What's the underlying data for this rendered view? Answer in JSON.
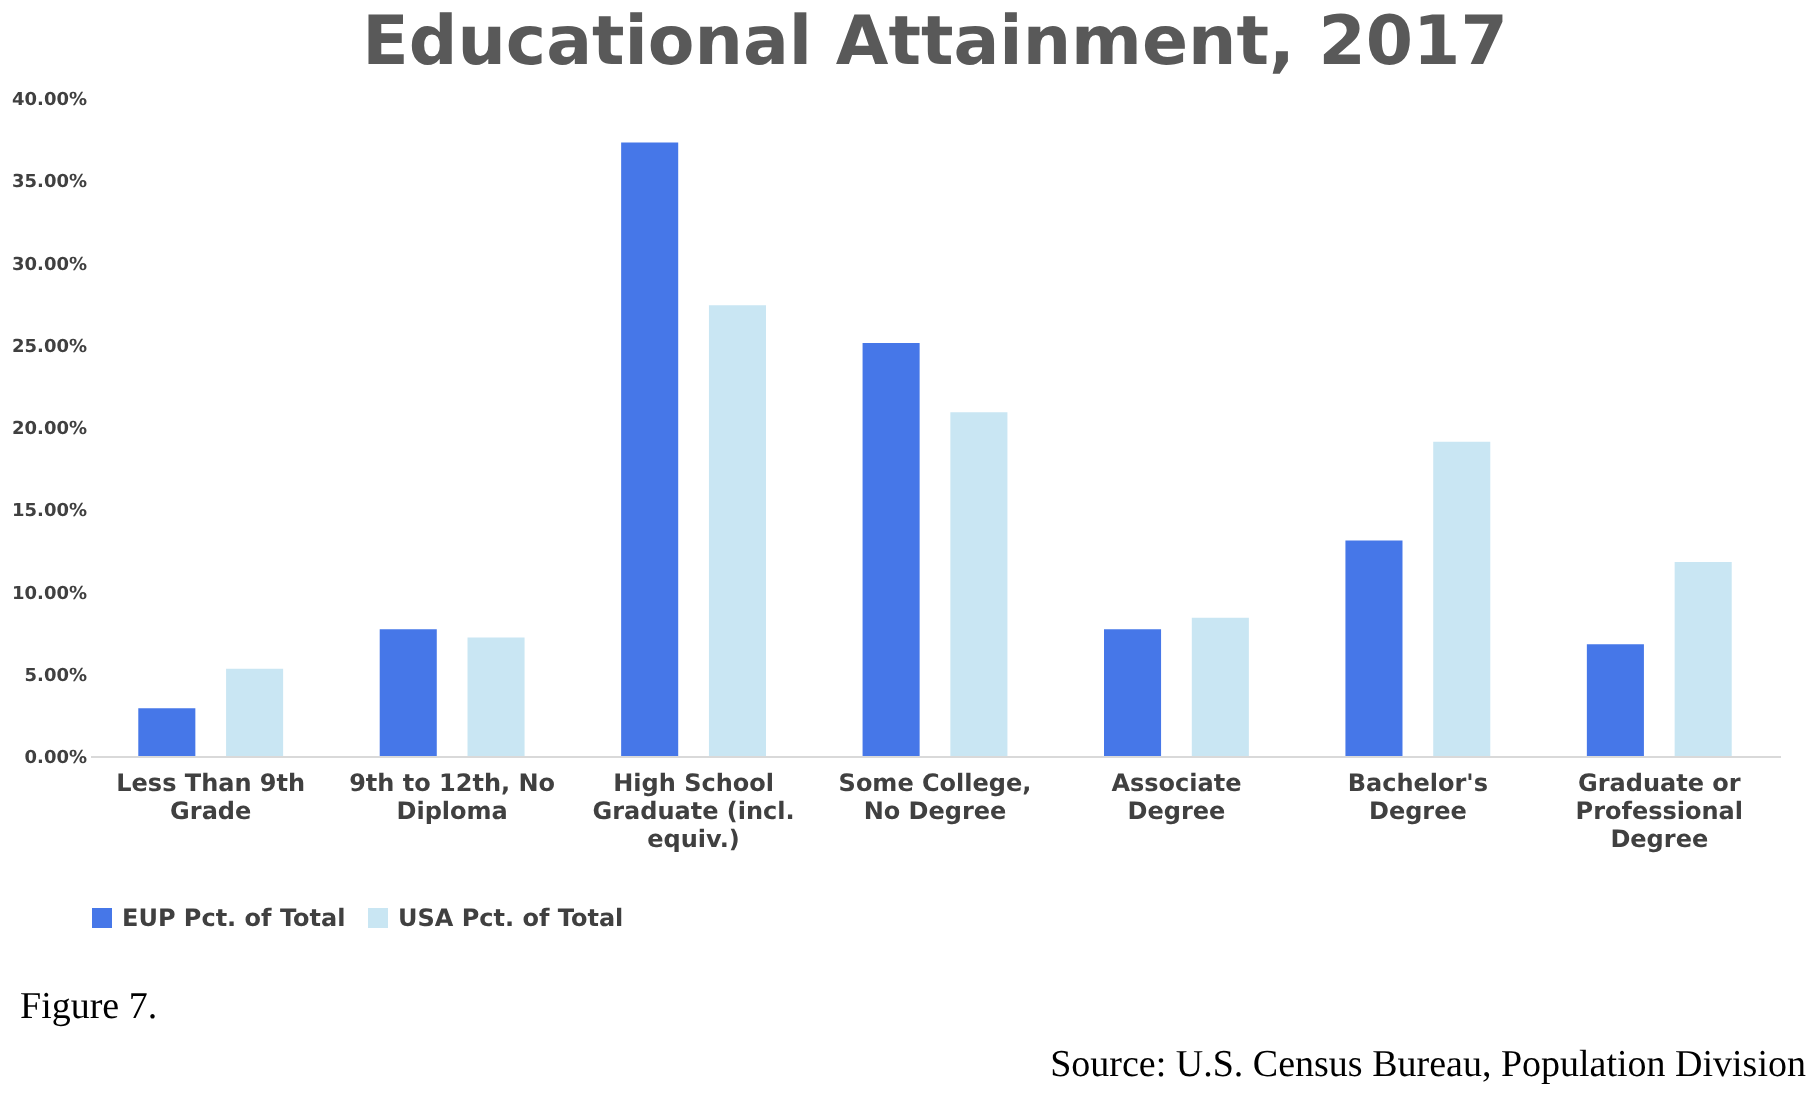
{
  "chart_data": {
    "type": "bar",
    "title": "Educational Attainment, 2017",
    "categories": [
      "Less Than 9th Grade",
      "9th to 12th, No Diploma",
      "High School Graduate (incl. equiv.)",
      "Some College, No Degree",
      "Associate Degree",
      "Bachelor's Degree",
      "Graduate or Professional Degree"
    ],
    "series": [
      {
        "name": "EUP Pct. of Total",
        "color": "#4677e8",
        "values": [
          2.9,
          7.7,
          37.3,
          25.1,
          7.7,
          13.1,
          6.8
        ]
      },
      {
        "name": "USA Pct. of Total",
        "color": "#c9e6f3",
        "values": [
          5.3,
          7.2,
          27.4,
          20.9,
          8.4,
          19.1,
          11.8
        ]
      }
    ],
    "ylim": [
      0,
      40
    ],
    "yticks": [
      {
        "value": 0,
        "label": "0.00%"
      },
      {
        "value": 5,
        "label": "5.00%"
      },
      {
        "value": 10,
        "label": "10.00%"
      },
      {
        "value": 15,
        "label": "15.00%"
      },
      {
        "value": 20,
        "label": "20.00%"
      },
      {
        "value": 25,
        "label": "25.00%"
      },
      {
        "value": 30,
        "label": "30.00%"
      },
      {
        "value": 35,
        "label": "35.00%"
      },
      {
        "value": 40,
        "label": "40.00%"
      }
    ],
    "grid": false,
    "legend": "bottom",
    "annotations": [
      "Figure 7.",
      "Source: U.S. Census Bureau, Population Division"
    ]
  }
}
